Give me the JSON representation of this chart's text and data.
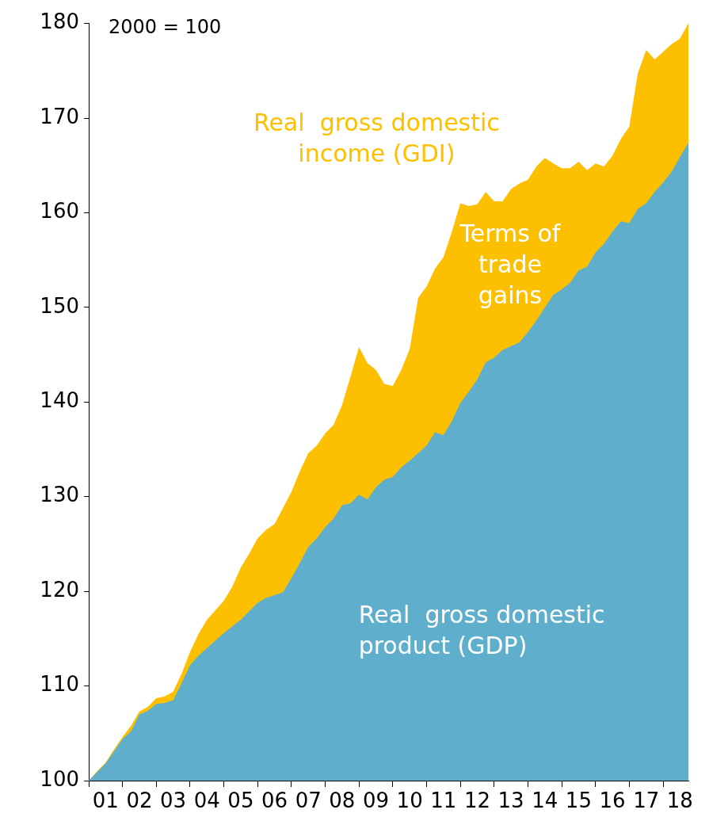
{
  "chart_data": {
    "type": "area",
    "categories": [
      null,
      null,
      "01",
      null,
      null,
      null,
      "02",
      null,
      null,
      null,
      "03",
      null,
      null,
      null,
      "04",
      null,
      null,
      null,
      "05",
      null,
      null,
      null,
      "06",
      null,
      null,
      null,
      "07",
      null,
      null,
      null,
      "08",
      null,
      null,
      null,
      "09",
      null,
      null,
      null,
      "10",
      null,
      null,
      null,
      "11",
      null,
      null,
      null,
      "12",
      null,
      null,
      null,
      "13",
      null,
      null,
      null,
      "14",
      null,
      null,
      null,
      "15",
      null,
      null,
      null,
      "16",
      null,
      null,
      null,
      "17",
      null,
      null,
      null,
      "18",
      null
    ],
    "series": [
      {
        "name": "Real  gross domestic income (GDI)",
        "color": "#fdc000",
        "values": [
          100,
          101.0,
          101.9,
          103.3,
          104.6,
          105.8,
          107.3,
          107.8,
          108.7,
          108.9,
          109.4,
          111.3,
          113.6,
          115.5,
          117.0,
          118.0,
          119.0,
          120.5,
          122.5,
          124.0,
          125.6,
          126.5,
          127.1,
          128.8,
          130.5,
          132.7,
          134.6,
          135.4,
          136.7,
          137.6,
          139.7,
          142.7,
          145.8,
          144.1,
          143.4,
          141.9,
          141.7,
          143.4,
          145.6,
          151.0,
          152.2,
          154.1,
          155.3,
          158.0,
          161.0,
          160.7,
          160.9,
          162.2,
          161.2,
          161.2,
          162.5,
          163.1,
          163.5,
          164.9,
          165.8,
          165.2,
          164.7,
          164.7,
          165.4,
          164.5,
          165.2,
          164.9,
          166.0,
          167.8,
          169.1,
          174.7,
          177.2,
          176.2,
          177.0,
          177.8,
          178.4,
          180
        ]
      },
      {
        "name": "Real  gross domestic product (GDP)",
        "color": "#5faecb",
        "values": [
          100,
          100.9,
          101.8,
          103.1,
          104.4,
          105.2,
          107.0,
          107.4,
          108.1,
          108.2,
          108.5,
          110.3,
          112.2,
          113.2,
          114.0,
          114.8,
          115.6,
          116.3,
          117.0,
          117.9,
          118.8,
          119.3,
          119.6,
          119.9,
          121.4,
          123.0,
          124.7,
          125.6,
          126.8,
          127.7,
          129.1,
          129.3,
          130.2,
          129.7,
          131.0,
          131.8,
          132.1,
          133.1,
          133.8,
          134.6,
          135.4,
          136.8,
          136.5,
          138.0,
          139.9,
          141.1,
          142.4,
          144.2,
          144.7,
          145.5,
          145.9,
          146.3,
          147.4,
          148.6,
          150.0,
          151.3,
          151.9,
          152.6,
          153.9,
          154.3,
          155.8,
          156.7,
          158.0,
          159.1,
          158.9,
          160.4,
          161.0,
          162.2,
          163.2,
          164.3,
          165.9,
          167.4
        ]
      }
    ],
    "annotations": [
      "2000 = 100",
      "Terms of trade gains"
    ],
    "ylim": [
      100,
      180
    ],
    "yticks": [
      100,
      110,
      120,
      130,
      140,
      150,
      160,
      170,
      180
    ],
    "grid": false,
    "legend": false,
    "marker": "none"
  }
}
